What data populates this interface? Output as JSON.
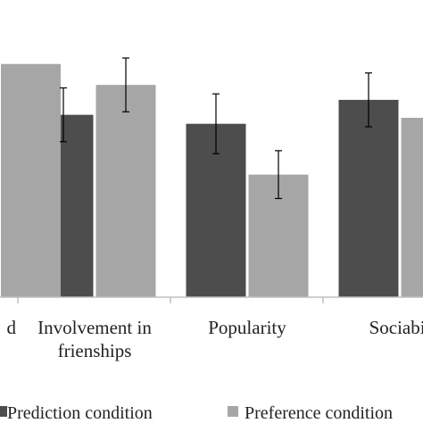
{
  "chart_data": {
    "type": "bar",
    "categories": [
      {
        "lines": [
          "d"
        ]
      },
      {
        "lines": [
          "Involvement in",
          "frienships"
        ]
      },
      {
        "lines": [
          "Popularity"
        ]
      },
      {
        "lines": [
          "Sociabil"
        ]
      }
    ],
    "series": [
      {
        "name": "Prediction condition",
        "color": "#4d4d4d",
        "values": [
          null,
          3.05,
          2.9,
          3.3
        ],
        "errors": [
          null,
          0.45,
          0.5,
          0.45
        ]
      },
      {
        "name": "Preference condition",
        "color": "#a6a6a6",
        "values": [
          3.9,
          3.55,
          2.05,
          3.0
        ],
        "errors": [
          null,
          0.45,
          0.4,
          null
        ]
      }
    ],
    "ylim": [
      0,
      4
    ],
    "grid": false,
    "legend_position": "bottom"
  }
}
